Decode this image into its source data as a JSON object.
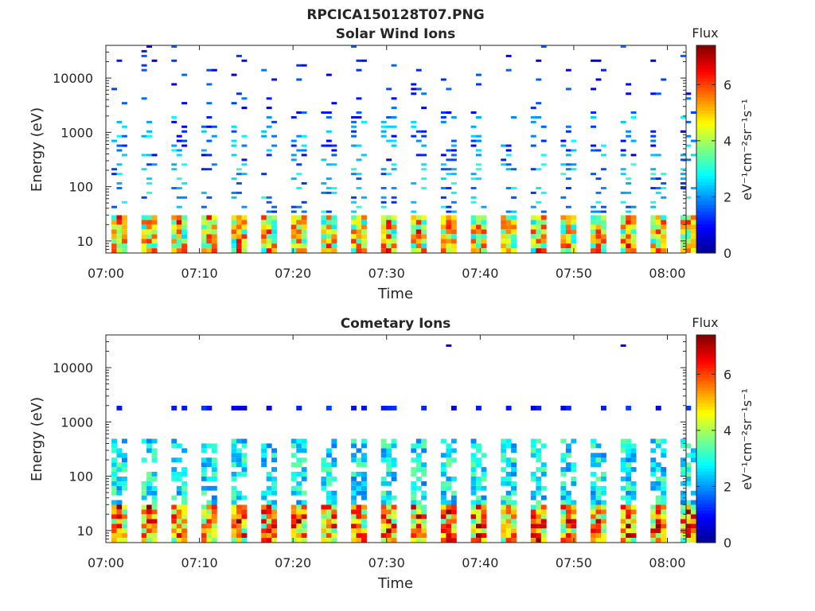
{
  "figure": {
    "title": "RPCICA150128T07.PNG"
  },
  "colormap": {
    "name": "jet",
    "stops": [
      "#00008f",
      "#0000ff",
      "#0080ff",
      "#00ffff",
      "#80ff80",
      "#ffff00",
      "#ff8000",
      "#ff0000",
      "#800000"
    ]
  },
  "chart_data": [
    {
      "type": "heatmap",
      "title": "Solar Wind Ions",
      "xlabel": "Time",
      "ylabel": "Energy (eV)",
      "xlim": [
        "07:00",
        "08:02"
      ],
      "xticks": [
        "07:00",
        "07:10",
        "07:20",
        "07:30",
        "07:40",
        "07:50",
        "08:00"
      ],
      "yscale": "log",
      "ylim": [
        6,
        40000
      ],
      "yticks": [
        10,
        100,
        1000,
        10000
      ],
      "ytick_labels": [
        "10",
        "100",
        "1000",
        "10000"
      ],
      "colorbar": {
        "title": "Flux",
        "label": "eV⁻¹cm⁻²sr⁻¹s⁻¹",
        "range": [
          0,
          7.4
        ],
        "ticks": [
          0,
          2,
          4,
          6
        ]
      },
      "sweep_period_min": 3.2,
      "sweeps_start_min": 0.6,
      "bands": [
        {
          "e_min": 6,
          "e_max": 28,
          "density": 1.0,
          "vmin": 2.5,
          "vmax": 6.2
        },
        {
          "e_min": 28,
          "e_max": 250,
          "density": 0.32,
          "vmin": 1.2,
          "vmax": 3.2
        },
        {
          "e_min": 250,
          "e_max": 2000,
          "density": 0.3,
          "vmin": 0.8,
          "vmax": 2.8
        },
        {
          "e_min": 2000,
          "e_max": 40000,
          "density": 0.1,
          "vmin": 0.6,
          "vmax": 1.8
        }
      ],
      "grid": false
    },
    {
      "type": "heatmap",
      "title": "Cometary Ions",
      "xlabel": "Time",
      "ylabel": "Energy (eV)",
      "xlim": [
        "07:00",
        "08:02"
      ],
      "xticks": [
        "07:00",
        "07:10",
        "07:20",
        "07:30",
        "07:40",
        "07:50",
        "08:00"
      ],
      "yscale": "log",
      "ylim": [
        6,
        40000
      ],
      "yticks": [
        10,
        100,
        1000,
        10000
      ],
      "ytick_labels": [
        "10",
        "100",
        "1000",
        "10000"
      ],
      "colorbar": {
        "title": "Flux",
        "label": "eV⁻¹cm⁻²sr⁻¹s⁻¹",
        "range": [
          0,
          7.4
        ],
        "ticks": [
          0,
          2,
          4,
          6
        ]
      },
      "sweep_period_min": 3.2,
      "sweeps_start_min": 0.6,
      "bands": [
        {
          "e_min": 6,
          "e_max": 30,
          "density": 1.0,
          "vmin": 3.0,
          "vmax": 6.9
        },
        {
          "e_min": 30,
          "e_max": 450,
          "density": 0.62,
          "vmin": 1.8,
          "vmax": 3.6
        },
        {
          "e_min": 1500,
          "e_max": 2000,
          "density": 0.5,
          "vmin": 0.6,
          "vmax": 1.4
        },
        {
          "e_min": 2800,
          "e_max": 3200,
          "density": 0.04,
          "vmin": 0.6,
          "vmax": 1.2
        },
        {
          "e_min": 20000,
          "e_max": 25000,
          "density": 0.02,
          "vmin": 0.6,
          "vmax": 1.2
        }
      ],
      "grid": false
    }
  ]
}
